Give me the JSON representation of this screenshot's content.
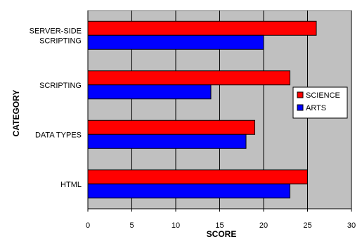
{
  "chart_data": {
    "type": "bar",
    "orientation": "horizontal",
    "title": "",
    "xlabel": "SCORE",
    "ylabel": "CATEGORY",
    "categories": [
      "HTML",
      "DATA TYPES",
      "SCRIPTING",
      "SERVER-SIDE SCRIPTING"
    ],
    "category_label_lines": [
      [
        "HTML"
      ],
      [
        "DATA TYPES"
      ],
      [
        "SCRIPTING"
      ],
      [
        "SERVER-SIDE",
        "SCRIPTING"
      ]
    ],
    "series": [
      {
        "name": "ARTS",
        "color": "#0000ff",
        "values": [
          23,
          18,
          14,
          20
        ]
      },
      {
        "name": "SCIENCE",
        "color": "#ff0000",
        "values": [
          25,
          19,
          23,
          26
        ]
      }
    ],
    "xlim": [
      0,
      30
    ],
    "xticks": [
      0,
      5,
      10,
      15,
      20,
      25,
      30
    ],
    "grid": "vertical",
    "plot_background": "#c0c0c0",
    "legend_position": "right",
    "legend_order": [
      "SCIENCE",
      "ARTS"
    ]
  }
}
